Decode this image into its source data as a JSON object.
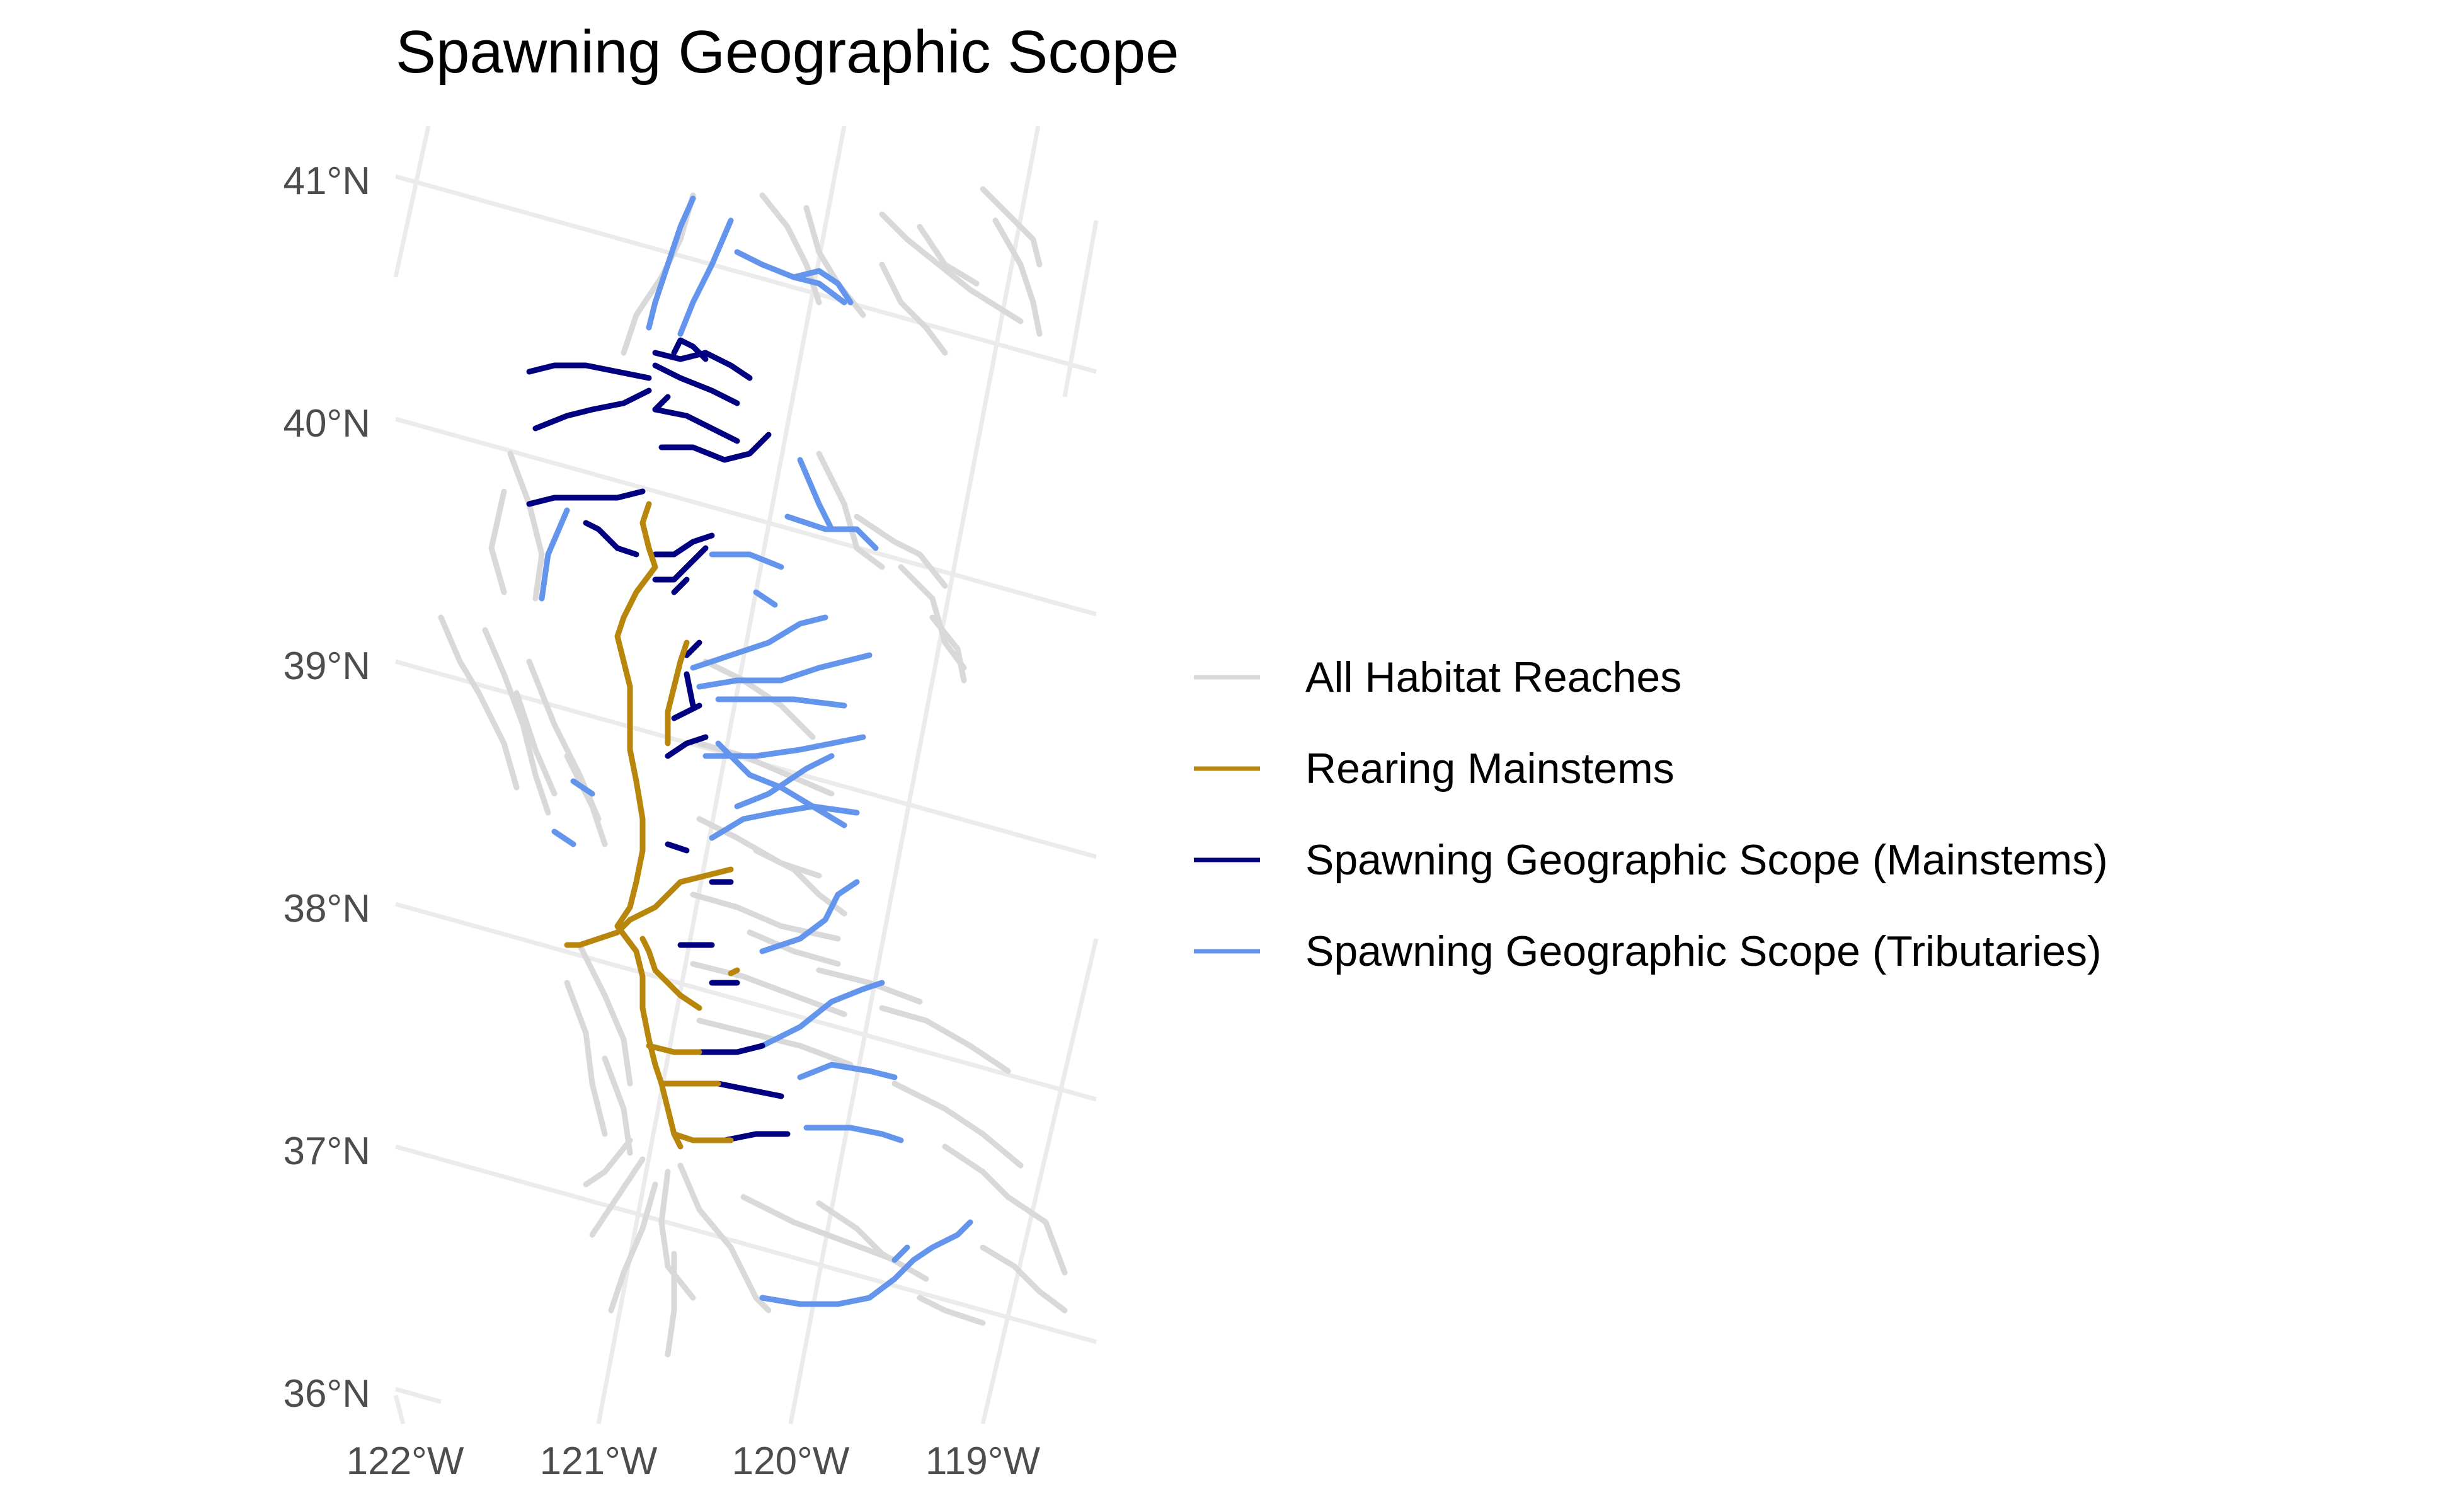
{
  "title": "Spawning Geographic Scope",
  "axes": {
    "y_ticks": [
      "41°N",
      "40°N",
      "39°N",
      "38°N",
      "37°N",
      "36°N"
    ],
    "x_ticks": [
      "122°W",
      "121°W",
      "120°W",
      "119°W"
    ]
  },
  "legend": {
    "position": "right",
    "items": [
      {
        "key": "all",
        "label": "All Habitat Reaches",
        "color": "#d9d9d9"
      },
      {
        "key": "rearing",
        "label": "Rearing Mainstems",
        "color": "#b8860b"
      },
      {
        "key": "spawn_main",
        "label": "Spawning Geographic Scope (Mainstems)",
        "color": "#000080"
      },
      {
        "key": "spawn_trib",
        "label": "Spawning Geographic Scope (Tributaries)",
        "color": "#6495ed"
      }
    ]
  },
  "grid": true
}
